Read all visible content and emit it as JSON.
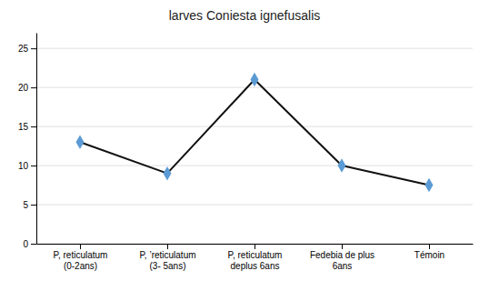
{
  "chart_data": {
    "type": "line",
    "title": "larves Coniesta ignefusalis",
    "categories": [
      "P, reticulatum\n(0-2ans)",
      "P, ’reticulatum\n(3- 5ans)",
      "P, reticulatum\ndeplus 6ans",
      "Fedebia de plus\n6ans",
      "Témoin"
    ],
    "values": [
      13,
      9,
      21,
      10,
      7.5
    ],
    "ylim": [
      0,
      27
    ],
    "yticks": [
      0,
      5,
      10,
      15,
      20,
      25
    ],
    "grid": true,
    "color": "#111111",
    "colors": [
      "#5B9BD5",
      "#5B9BD5",
      "#5B9BD5",
      "#5B9BD5",
      "#5B9BD5"
    ],
    "marker": "diamond"
  }
}
